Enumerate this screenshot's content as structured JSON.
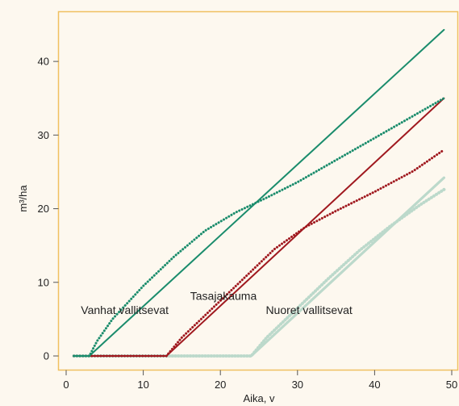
{
  "chart_data": {
    "type": "line",
    "xlabel": "Aika, v",
    "ylabel": "m³/ha",
    "xlim": [
      0,
      50
    ],
    "ylim": [
      0,
      45
    ],
    "xticks": [
      0,
      10,
      20,
      30,
      40,
      50
    ],
    "yticks": [
      0,
      10,
      20,
      30,
      40
    ],
    "grid": false,
    "colors": {
      "plot_background": "#fdf8ef",
      "frame": "#f0c060",
      "green": "#1a8c6c",
      "red": "#a0191f",
      "light_green": "#bcd9cb"
    },
    "series": [
      {
        "color": "#1a8c6c",
        "style": "solid",
        "x": [
          1,
          3,
          49
        ],
        "y": [
          0,
          0,
          44.3
        ]
      },
      {
        "color": "#1a8c6c",
        "style": "dotted",
        "x": [
          1,
          3,
          4,
          6,
          10,
          14,
          18,
          22,
          26,
          30,
          35,
          40,
          45,
          49
        ],
        "y": [
          0,
          0,
          2,
          5,
          9.5,
          13.5,
          17,
          19.5,
          21.5,
          23.6,
          26.6,
          29.6,
          32.6,
          35
        ]
      },
      {
        "color": "#a0191f",
        "style": "solid",
        "x": [
          1,
          13,
          49
        ],
        "y": [
          0,
          0,
          35
        ]
      },
      {
        "color": "#a0191f",
        "style": "dotted",
        "x": [
          1,
          13,
          15,
          19,
          23,
          27,
          31,
          35,
          40,
          45,
          49
        ],
        "y": [
          0,
          0,
          2.5,
          6.5,
          10.5,
          14.5,
          17.5,
          19.7,
          22.3,
          25.1,
          28
        ]
      },
      {
        "color": "#bcd9cb",
        "style": "solid",
        "x": [
          1,
          24,
          49
        ],
        "y": [
          0,
          0,
          24.2
        ]
      },
      {
        "color": "#bcd9cb",
        "style": "dotted",
        "x": [
          1,
          24,
          26,
          30,
          34,
          38,
          42,
          46,
          49
        ],
        "y": [
          0,
          0,
          2.5,
          6.5,
          10.5,
          14.3,
          17.6,
          20.6,
          22.6
        ]
      }
    ],
    "annotations": [
      {
        "text": "Vanhat vallitsevat",
        "x": 7.6,
        "y": 6.2
      },
      {
        "text": "Tasajakauma",
        "x": 20.4,
        "y": 8.1
      },
      {
        "text": "Nuoret vallitsevat",
        "x": 31.5,
        "y": 6.2
      }
    ]
  }
}
